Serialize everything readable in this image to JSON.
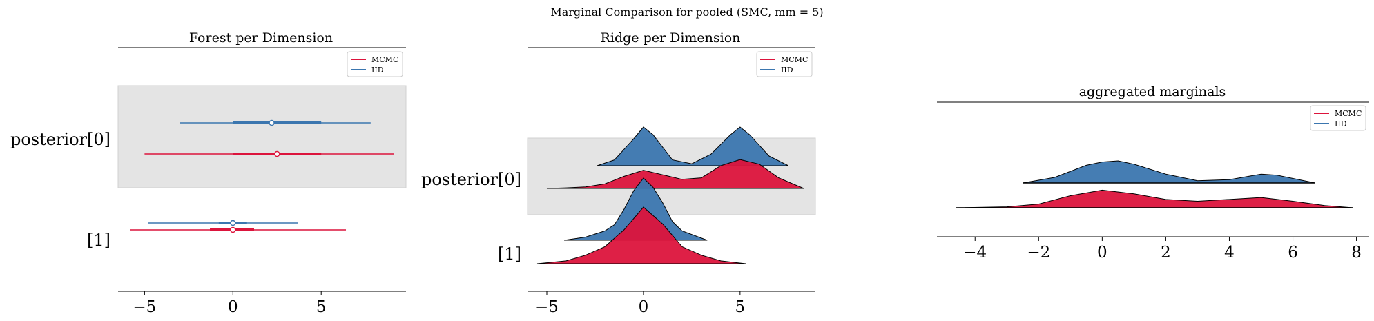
{
  "figure": {
    "suptitle": "Marginal Comparison for pooled (SMC, mm = 5)"
  },
  "colors": {
    "mcmc": "#dc143c",
    "iid": "#3b76af",
    "band": "#e4e4e4"
  },
  "chart_data": [
    {
      "type": "forest",
      "title": "Forest per Dimension",
      "categories": [
        "posterior[0]",
        "[1]"
      ],
      "xlim": [
        -6.5,
        9.8
      ],
      "xticks": [
        -5,
        0,
        5
      ],
      "xticklabels": [
        "−5",
        "0",
        "5"
      ],
      "legend": {
        "position": "top-right",
        "entries": [
          "MCMC",
          "IID"
        ]
      },
      "series": [
        {
          "name": "MCMC",
          "color": "#dc143c",
          "points": [
            {
              "dim": "posterior[0]",
              "median": 2.5,
              "iqr": [
                0.0,
                5.0
              ],
              "range": [
                -5.0,
                9.1
              ]
            },
            {
              "dim": "[1]",
              "median": 0.0,
              "iqr": [
                -1.3,
                1.2
              ],
              "range": [
                -5.8,
                6.4
              ]
            }
          ]
        },
        {
          "name": "IID",
          "color": "#3b76af",
          "points": [
            {
              "dim": "posterior[0]",
              "median": 2.2,
              "iqr": [
                0.0,
                5.0
              ],
              "range": [
                -3.0,
                7.8
              ]
            },
            {
              "dim": "[1]",
              "median": 0.0,
              "iqr": [
                -0.8,
                0.8
              ],
              "range": [
                -4.8,
                3.7
              ]
            }
          ]
        }
      ]
    },
    {
      "type": "ridge",
      "title": "Ridge per Dimension",
      "categories": [
        "posterior[0]",
        "[1]"
      ],
      "xlim": [
        -6.0,
        8.9
      ],
      "xticks": [
        -5,
        0,
        5
      ],
      "xticklabels": [
        "−5",
        "0",
        "5"
      ],
      "legend": {
        "position": "top-right",
        "entries": [
          "MCMC",
          "IID"
        ]
      },
      "series": [
        {
          "name": "IID",
          "color": "#3b76af",
          "ridges": [
            {
              "dim": "posterior[0]",
              "x": [
                -2.4,
                -1.5,
                -0.5,
                0.0,
                0.5,
                1.5,
                2.5,
                3.5,
                4.5,
                5.0,
                5.5,
                6.5,
                7.5
              ],
              "y": [
                0.0,
                0.15,
                0.7,
                1.0,
                0.8,
                0.15,
                0.05,
                0.3,
                0.8,
                1.0,
                0.8,
                0.25,
                0.0
              ]
            },
            {
              "dim": "[1]",
              "x": [
                -4.1,
                -3.0,
                -2.0,
                -1.5,
                -1.0,
                -0.5,
                0.0,
                0.5,
                1.0,
                1.5,
                2.0,
                3.3
              ],
              "y": [
                0.0,
                0.05,
                0.15,
                0.25,
                0.5,
                0.8,
                1.0,
                0.85,
                0.6,
                0.3,
                0.15,
                0.0
              ]
            }
          ]
        },
        {
          "name": "MCMC",
          "color": "#dc143c",
          "ridges": [
            {
              "dim": "posterior[0]",
              "x": [
                -5.0,
                -4.0,
                -3.0,
                -2.0,
                -1.0,
                0.0,
                1.0,
                2.0,
                3.0,
                4.0,
                5.0,
                6.0,
                7.0,
                8.3
              ],
              "y": [
                0.0,
                0.02,
                0.05,
                0.15,
                0.4,
                0.6,
                0.45,
                0.3,
                0.35,
                0.75,
                0.95,
                0.8,
                0.35,
                0.0
              ]
            },
            {
              "dim": "[1]",
              "x": [
                -5.5,
                -4.0,
                -3.0,
                -2.0,
                -1.5,
                -1.0,
                -0.5,
                0.0,
                0.5,
                1.0,
                1.5,
                2.0,
                3.0,
                4.0,
                5.3
              ],
              "y": [
                0.0,
                0.05,
                0.15,
                0.3,
                0.45,
                0.6,
                0.8,
                1.0,
                0.85,
                0.7,
                0.5,
                0.3,
                0.15,
                0.05,
                0.0
              ]
            }
          ]
        }
      ]
    },
    {
      "type": "area",
      "title": "aggregated marginals",
      "xlim": [
        -5.2,
        8.4
      ],
      "xticks": [
        -4,
        -2,
        0,
        2,
        4,
        6,
        8
      ],
      "xticklabels": [
        "−4",
        "−2",
        "0",
        "2",
        "4",
        "6",
        "8"
      ],
      "legend": {
        "position": "top-right",
        "entries": [
          "MCMC",
          "IID"
        ]
      },
      "series": [
        {
          "name": "IID",
          "color": "#3b76af",
          "x": [
            -2.5,
            -1.5,
            -0.5,
            0.0,
            0.5,
            1.0,
            2.0,
            3.0,
            4.0,
            5.0,
            5.5,
            6.7
          ],
          "y": [
            0.0,
            0.25,
            0.8,
            0.95,
            1.0,
            0.85,
            0.4,
            0.1,
            0.15,
            0.4,
            0.35,
            0.0
          ]
        },
        {
          "name": "MCMC",
          "color": "#dc143c",
          "x": [
            -4.6,
            -3.0,
            -2.0,
            -1.0,
            0.0,
            1.0,
            2.0,
            3.0,
            4.0,
            5.0,
            6.0,
            7.0,
            7.9
          ],
          "y": [
            0.0,
            0.05,
            0.2,
            0.65,
            0.95,
            0.75,
            0.45,
            0.35,
            0.45,
            0.55,
            0.35,
            0.12,
            0.0
          ]
        }
      ]
    }
  ]
}
